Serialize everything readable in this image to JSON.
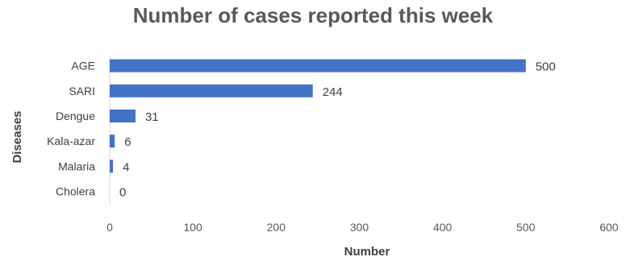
{
  "chart_data": {
    "type": "bar",
    "orientation": "horizontal",
    "title": "Number of cases reported this week",
    "xlabel": "Number",
    "ylabel": "Diseases",
    "categories": [
      "AGE",
      "SARI",
      "Dengue",
      "Kala-azar",
      "Malaria",
      "Cholera"
    ],
    "values": [
      500,
      244,
      31,
      6,
      4,
      0
    ],
    "xlim": [
      0,
      600
    ],
    "xticks": [
      0,
      100,
      200,
      300,
      400,
      500,
      600
    ],
    "grid": false,
    "legend": "none",
    "bar_color": "#4472C4"
  }
}
